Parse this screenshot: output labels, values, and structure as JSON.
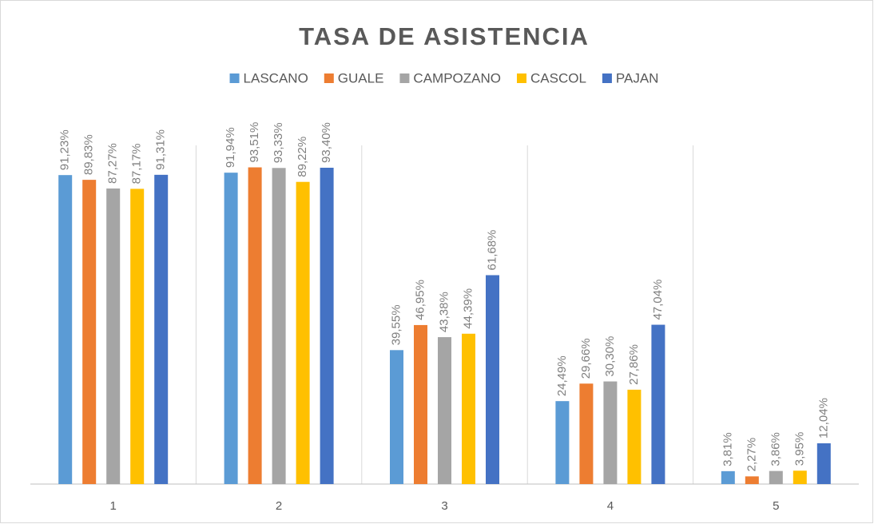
{
  "chart_data": {
    "type": "bar",
    "title": "TASA DE ASISTENCIA",
    "categories": [
      "1",
      "2",
      "3",
      "4",
      "5"
    ],
    "series": [
      {
        "name": "LASCANO",
        "color": "#5b9bd5",
        "values": [
          91.23,
          91.94,
          39.55,
          24.49,
          3.81
        ],
        "value_labels": [
          "91,23%",
          "91,94%",
          "39,55%",
          "24,49%",
          "3,81%"
        ]
      },
      {
        "name": "GUALE",
        "color": "#ed7d31",
        "values": [
          89.83,
          93.51,
          46.95,
          29.66,
          2.27
        ],
        "value_labels": [
          "89,83%",
          "93,51%",
          "46,95%",
          "29,66%",
          "2,27%"
        ]
      },
      {
        "name": "CAMPOZANO",
        "color": "#a5a5a5",
        "values": [
          87.27,
          93.33,
          43.38,
          30.3,
          3.86
        ],
        "value_labels": [
          "87,27%",
          "93,33%",
          "43,38%",
          "30,30%",
          "3,86%"
        ]
      },
      {
        "name": "CASCOL",
        "color": "#ffc000",
        "values": [
          87.17,
          89.22,
          44.39,
          27.86,
          3.95
        ],
        "value_labels": [
          "87,17%",
          "89,22%",
          "44,39%",
          "27,86%",
          "3,95%"
        ]
      },
      {
        "name": "PAJAN",
        "color": "#4472c4",
        "values": [
          91.31,
          93.4,
          61.68,
          47.04,
          12.04
        ],
        "value_labels": [
          "91,31%",
          "93,40%",
          "61,68%",
          "47,04%",
          "12,04%"
        ]
      }
    ],
    "ylim": [
      0,
      100
    ]
  }
}
